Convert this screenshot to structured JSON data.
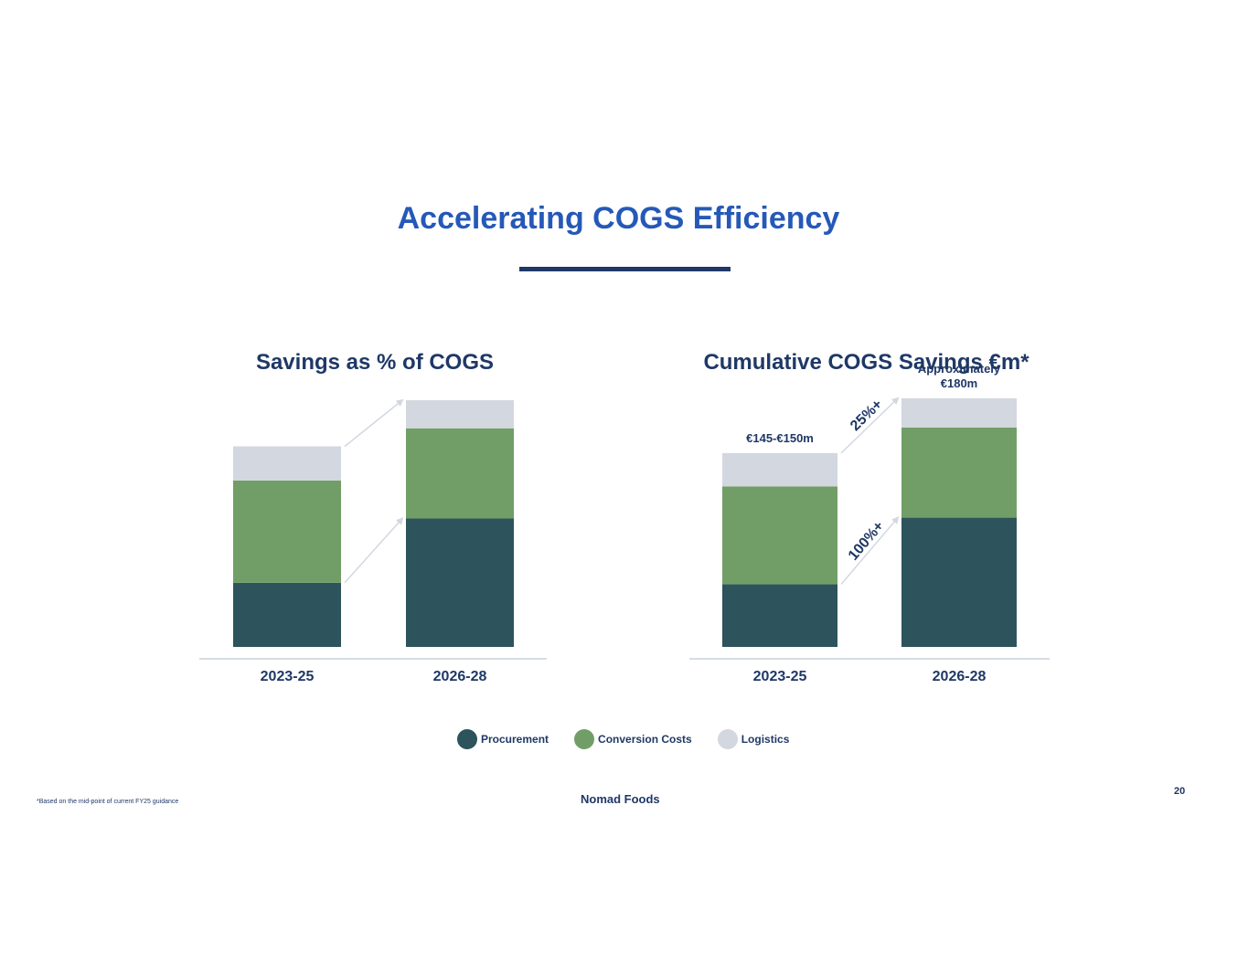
{
  "slide": {
    "title": "Accelerating COGS Efficiency",
    "footnote": "*Based on the mid-point of current FY25 guidance",
    "logo": "Nomad Foods",
    "page_number": "20"
  },
  "colors": {
    "title": "#2559b8",
    "text": "#1f3866",
    "procurement": "#2d535c",
    "conversion": "#719e67",
    "logistics": "#d3d7df",
    "axis": "#d8dce3",
    "arrow": "#d3d7df"
  },
  "legend": [
    {
      "label": "Procurement",
      "color": "#2d535c"
    },
    {
      "label": "Conversion  Costs",
      "color": "#719e67"
    },
    {
      "label": "Logistics",
      "color": "#d3d7df"
    }
  ],
  "chart_data": [
    {
      "type": "bar",
      "stacked": true,
      "title": "Savings as % of COGS",
      "categories": [
        "2023-25",
        "2026-28"
      ],
      "series": [
        {
          "name": "Procurement",
          "values": [
            32,
            64
          ]
        },
        {
          "name": "Conversion  Costs",
          "values": [
            51,
            45
          ]
        },
        {
          "name": "Logistics",
          "values": [
            17,
            14
          ]
        }
      ],
      "ylim": [
        0,
        123
      ],
      "axis_labels_shown": false,
      "annotations": []
    },
    {
      "type": "bar",
      "stacked": true,
      "title": "Cumulative COGS Savings €m*",
      "categories": [
        "2023-25",
        "2026-28"
      ],
      "series": [
        {
          "name": "Procurement",
          "values": [
            32,
            66
          ]
        },
        {
          "name": "Conversion  Costs",
          "values": [
            50,
            46
          ]
        },
        {
          "name": "Logistics",
          "values": [
            17,
            15
          ]
        }
      ],
      "ylim": [
        0,
        126
      ],
      "axis_labels_shown": false,
      "total_labels": [
        [
          "€145-€150m"
        ],
        [
          "Approximately",
          "€180m"
        ]
      ],
      "growth_labels": [
        "25%+",
        "100%+"
      ]
    }
  ]
}
